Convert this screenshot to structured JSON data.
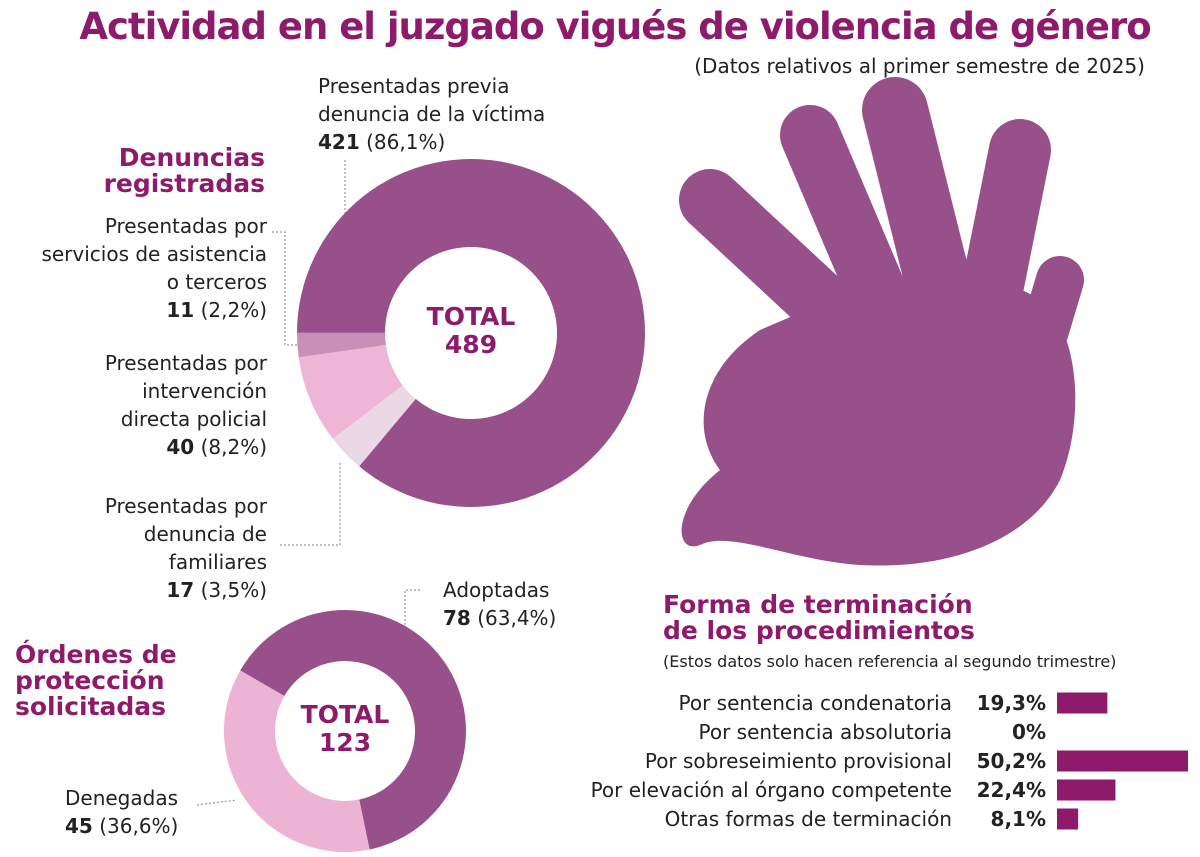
{
  "title": "Actividad en el juzgado vigués de violencia de género",
  "subtitle": "(Datos relativos al primer semestre de 2025)",
  "chart_data": [
    {
      "type": "donut",
      "title": "Denuncias\nregistradas",
      "center_label": "TOTAL",
      "total": 489,
      "categories": [
        "Presentadas previa\ndenuncia de la víctima",
        "Presentadas por\nservicios de asistencia\no terceros",
        "Presentadas por\nintervención\ndirecta policial",
        "Presentadas por\ndenuncia de\nfamiliares"
      ],
      "values": [
        421,
        11,
        40,
        17
      ],
      "share_labels": [
        "(86,1%)",
        "(2,2%)",
        "(8,2%)",
        "(3,5%)"
      ],
      "colors": [
        "#97508a",
        "#c98fb8",
        "#eeb5d6",
        "#ead9e4"
      ]
    },
    {
      "type": "donut",
      "title": "Órdenes de\nprotección\nsolicitadas",
      "center_label": "TOTAL",
      "total": 123,
      "categories": [
        "Adoptadas",
        "Denegadas"
      ],
      "values": [
        78,
        45
      ],
      "share_labels": [
        "(63,4%)",
        "(36,6%)"
      ],
      "colors": [
        "#97508a",
        "#ecb3d5"
      ]
    },
    {
      "type": "bar",
      "orientation": "horizontal",
      "title": "Forma de terminación\nde los procedimientos",
      "subtitle": "(Estos datos solo hacen referencia al segundo trimestre)",
      "categories": [
        "Por sentencia condenatoria",
        "Por sentencia absolutoria",
        "Por sobreseimiento provisional",
        "Por elevación al órgano competente",
        "Otras formas de terminación"
      ],
      "values": [
        19.3,
        0,
        50.2,
        22.4,
        8.1
      ],
      "value_labels": [
        "19,3%",
        "0%",
        "50,2%",
        "22,4%",
        "8,1%"
      ],
      "color": "#8e1a6b"
    }
  ]
}
